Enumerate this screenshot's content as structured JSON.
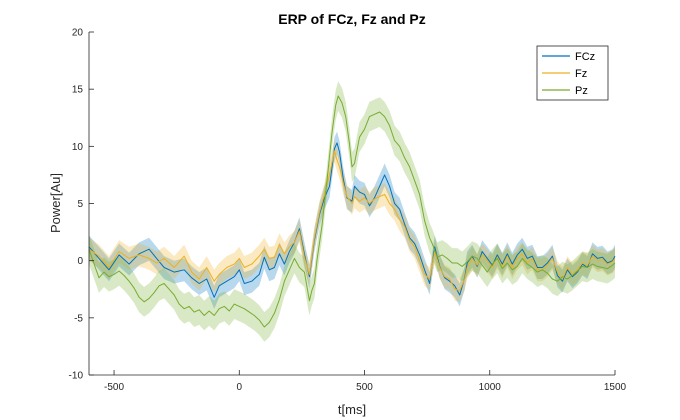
{
  "chart_data": {
    "type": "line",
    "title": "ERP of FCz, Fz and Pz",
    "xlabel": "t[ms]",
    "ylabel": "Power[Au]",
    "xlim": [
      -600,
      1500
    ],
    "ylim": [
      -10,
      20
    ],
    "xticks": [
      -500,
      0,
      500,
      1000,
      1500
    ],
    "yticks": [
      -10,
      -5,
      0,
      5,
      10,
      15,
      20
    ],
    "xtick_labels": [
      "-500",
      "0",
      "500",
      "1000",
      "1500"
    ],
    "ytick_labels": [
      "-10",
      "-5",
      "0",
      "5",
      "10",
      "15",
      "20"
    ],
    "grid": false,
    "legend_position": "top-right",
    "shaded_error_band": true,
    "series": [
      {
        "name": "FCz",
        "color": "#0072BD",
        "band": 1.0,
        "points": [
          [
            -600,
            1.2
          ],
          [
            -560,
            0.2
          ],
          [
            -520,
            -0.8
          ],
          [
            -480,
            0.5
          ],
          [
            -440,
            -0.3
          ],
          [
            -400,
            0.6
          ],
          [
            -360,
            1.0
          ],
          [
            -330,
            0.2
          ],
          [
            -300,
            -0.6
          ],
          [
            -260,
            -1.0
          ],
          [
            -220,
            -0.8
          ],
          [
            -190,
            -1.5
          ],
          [
            -160,
            -2.0
          ],
          [
            -130,
            -1.6
          ],
          [
            -100,
            -3.2
          ],
          [
            -80,
            -2.2
          ],
          [
            -50,
            -1.8
          ],
          [
            -20,
            -1.4
          ],
          [
            0,
            -0.8
          ],
          [
            20,
            -2.0
          ],
          [
            50,
            -1.8
          ],
          [
            80,
            -1.2
          ],
          [
            100,
            0.3
          ],
          [
            120,
            -0.8
          ],
          [
            140,
            -0.6
          ],
          [
            160,
            0.6
          ],
          [
            180,
            -0.3
          ],
          [
            200,
            0.8
          ],
          [
            220,
            1.6
          ],
          [
            240,
            2.8
          ],
          [
            260,
            0.6
          ],
          [
            280,
            -1.4
          ],
          [
            300,
            1.8
          ],
          [
            320,
            4.0
          ],
          [
            340,
            5.5
          ],
          [
            360,
            6.5
          ],
          [
            380,
            9.8
          ],
          [
            390,
            10.3
          ],
          [
            400,
            9.5
          ],
          [
            415,
            7.2
          ],
          [
            430,
            5.5
          ],
          [
            450,
            5.2
          ],
          [
            460,
            6.5
          ],
          [
            480,
            6.0
          ],
          [
            500,
            5.8
          ],
          [
            520,
            4.8
          ],
          [
            540,
            5.5
          ],
          [
            560,
            6.5
          ],
          [
            580,
            7.5
          ],
          [
            600,
            6.5
          ],
          [
            620,
            5.0
          ],
          [
            640,
            4.5
          ],
          [
            660,
            3.2
          ],
          [
            680,
            2.0
          ],
          [
            700,
            1.5
          ],
          [
            720,
            0.5
          ],
          [
            740,
            -0.8
          ],
          [
            760,
            -2.0
          ],
          [
            780,
            1.2
          ],
          [
            800,
            -0.5
          ],
          [
            820,
            -1.5
          ],
          [
            840,
            -1.8
          ],
          [
            860,
            -2.2
          ],
          [
            880,
            -3.0
          ],
          [
            900,
            -1.5
          ],
          [
            910,
            -0.2
          ],
          [
            930,
            0.4
          ],
          [
            950,
            -0.5
          ],
          [
            970,
            0.8
          ],
          [
            990,
            0.2
          ],
          [
            1010,
            -0.4
          ],
          [
            1030,
            0.5
          ],
          [
            1050,
            -0.3
          ],
          [
            1070,
            0.6
          ],
          [
            1090,
            -0.3
          ],
          [
            1110,
            0.5
          ],
          [
            1130,
            1.0
          ],
          [
            1150,
            0.2
          ],
          [
            1170,
            0.4
          ],
          [
            1190,
            -0.6
          ],
          [
            1210,
            -0.6
          ],
          [
            1230,
            -0.2
          ],
          [
            1250,
            0.4
          ],
          [
            1270,
            -1.3
          ],
          [
            1290,
            -1.8
          ],
          [
            1310,
            -0.8
          ],
          [
            1330,
            -1.4
          ],
          [
            1350,
            -1.0
          ],
          [
            1370,
            -0.3
          ],
          [
            1390,
            -0.6
          ],
          [
            1410,
            0.6
          ],
          [
            1430,
            0.2
          ],
          [
            1450,
            0.3
          ],
          [
            1470,
            -0.2
          ],
          [
            1490,
            0.0
          ],
          [
            1500,
            0.4
          ]
        ]
      },
      {
        "name": "Fz",
        "color": "#EDB120",
        "band": 1.0,
        "points": [
          [
            -600,
            1.0
          ],
          [
            -560,
            0.4
          ],
          [
            -520,
            -0.6
          ],
          [
            -480,
            0.8
          ],
          [
            -440,
            0.2
          ],
          [
            -400,
            0.5
          ],
          [
            -360,
            0.2
          ],
          [
            -330,
            -0.2
          ],
          [
            -300,
            0.2
          ],
          [
            -260,
            -0.6
          ],
          [
            -220,
            0.4
          ],
          [
            -190,
            -1.0
          ],
          [
            -160,
            -1.6
          ],
          [
            -130,
            -0.6
          ],
          [
            -100,
            -1.8
          ],
          [
            -80,
            -1.2
          ],
          [
            -50,
            -0.6
          ],
          [
            -20,
            -0.3
          ],
          [
            0,
            0.2
          ],
          [
            20,
            -0.6
          ],
          [
            50,
            -0.3
          ],
          [
            80,
            0.4
          ],
          [
            100,
            1.0
          ],
          [
            120,
            0.2
          ],
          [
            140,
            0.3
          ],
          [
            160,
            1.4
          ],
          [
            180,
            0.6
          ],
          [
            200,
            1.2
          ],
          [
            220,
            1.6
          ],
          [
            240,
            2.6
          ],
          [
            260,
            0.3
          ],
          [
            280,
            -1.2
          ],
          [
            300,
            2.0
          ],
          [
            320,
            4.2
          ],
          [
            340,
            5.8
          ],
          [
            360,
            7.5
          ],
          [
            380,
            9.6
          ],
          [
            390,
            8.8
          ],
          [
            400,
            8.2
          ],
          [
            415,
            6.8
          ],
          [
            430,
            5.6
          ],
          [
            450,
            5.0
          ],
          [
            460,
            5.6
          ],
          [
            480,
            5.2
          ],
          [
            500,
            5.5
          ],
          [
            520,
            5.0
          ],
          [
            540,
            5.4
          ],
          [
            560,
            5.6
          ],
          [
            580,
            5.8
          ],
          [
            600,
            5.0
          ],
          [
            620,
            4.5
          ],
          [
            640,
            3.6
          ],
          [
            660,
            3.0
          ],
          [
            680,
            1.8
          ],
          [
            700,
            1.2
          ],
          [
            720,
            0.0
          ],
          [
            740,
            -1.2
          ],
          [
            760,
            -1.6
          ],
          [
            780,
            0.8
          ],
          [
            800,
            -0.6
          ],
          [
            820,
            -1.4
          ],
          [
            840,
            -1.6
          ],
          [
            860,
            -2.5
          ],
          [
            880,
            -2.6
          ],
          [
            900,
            -1.6
          ],
          [
            910,
            -0.6
          ],
          [
            930,
            0.2
          ],
          [
            950,
            -0.4
          ],
          [
            970,
            0.5
          ],
          [
            990,
            0.0
          ],
          [
            1010,
            -0.6
          ],
          [
            1030,
            0.3
          ],
          [
            1050,
            -0.5
          ],
          [
            1070,
            0.4
          ],
          [
            1090,
            -0.6
          ],
          [
            1110,
            0.2
          ],
          [
            1130,
            0.6
          ],
          [
            1150,
            -0.2
          ],
          [
            1170,
            0.2
          ],
          [
            1190,
            -0.8
          ],
          [
            1210,
            -0.8
          ],
          [
            1230,
            -0.4
          ],
          [
            1250,
            0.2
          ],
          [
            1270,
            -1.0
          ],
          [
            1290,
            -1.6
          ],
          [
            1310,
            -0.6
          ],
          [
            1330,
            -1.2
          ],
          [
            1350,
            -0.8
          ],
          [
            1370,
            -0.2
          ],
          [
            1390,
            -0.4
          ],
          [
            1410,
            0.4
          ],
          [
            1430,
            0.0
          ],
          [
            1450,
            0.1
          ],
          [
            1470,
            -0.3
          ],
          [
            1490,
            -0.1
          ],
          [
            1500,
            0.2
          ]
        ]
      },
      {
        "name": "Pz",
        "color": "#77AC30",
        "band": 1.3,
        "points": [
          [
            -600,
            1.0
          ],
          [
            -575,
            -0.6
          ],
          [
            -560,
            -1.5
          ],
          [
            -540,
            -1.0
          ],
          [
            -520,
            -1.4
          ],
          [
            -500,
            -1.2
          ],
          [
            -480,
            -0.9
          ],
          [
            -460,
            -1.3
          ],
          [
            -440,
            -1.8
          ],
          [
            -420,
            -2.4
          ],
          [
            -400,
            -3.2
          ],
          [
            -380,
            -3.6
          ],
          [
            -360,
            -3.3
          ],
          [
            -340,
            -2.8
          ],
          [
            -320,
            -2.2
          ],
          [
            -300,
            -2.0
          ],
          [
            -280,
            -2.5
          ],
          [
            -260,
            -3.0
          ],
          [
            -240,
            -3.8
          ],
          [
            -220,
            -4.2
          ],
          [
            -200,
            -4.0
          ],
          [
            -180,
            -4.5
          ],
          [
            -160,
            -4.3
          ],
          [
            -140,
            -4.8
          ],
          [
            -120,
            -4.4
          ],
          [
            -100,
            -4.8
          ],
          [
            -80,
            -4.2
          ],
          [
            -60,
            -4.0
          ],
          [
            -40,
            -4.4
          ],
          [
            -20,
            -3.8
          ],
          [
            0,
            -4.0
          ],
          [
            20,
            -4.2
          ],
          [
            40,
            -4.5
          ],
          [
            60,
            -4.8
          ],
          [
            80,
            -5.2
          ],
          [
            100,
            -5.8
          ],
          [
            120,
            -5.4
          ],
          [
            140,
            -4.6
          ],
          [
            160,
            -3.4
          ],
          [
            180,
            -1.8
          ],
          [
            200,
            -0.8
          ],
          [
            220,
            0.2
          ],
          [
            240,
            -0.6
          ],
          [
            260,
            -1.0
          ],
          [
            280,
            -3.5
          ],
          [
            290,
            -2.6
          ],
          [
            300,
            -2.0
          ],
          [
            310,
            0.0
          ],
          [
            330,
            3.0
          ],
          [
            350,
            7.0
          ],
          [
            370,
            11.2
          ],
          [
            385,
            13.6
          ],
          [
            395,
            14.4
          ],
          [
            410,
            13.8
          ],
          [
            425,
            12.6
          ],
          [
            440,
            10.2
          ],
          [
            450,
            8.2
          ],
          [
            460,
            8.5
          ],
          [
            480,
            10.8
          ],
          [
            500,
            11.5
          ],
          [
            520,
            12.6
          ],
          [
            540,
            12.8
          ],
          [
            560,
            13.0
          ],
          [
            580,
            12.6
          ],
          [
            600,
            11.8
          ],
          [
            620,
            10.5
          ],
          [
            640,
            10.0
          ],
          [
            660,
            9.0
          ],
          [
            680,
            8.2
          ],
          [
            700,
            7.0
          ],
          [
            720,
            5.8
          ],
          [
            740,
            3.5
          ],
          [
            760,
            2.0
          ],
          [
            770,
            1.5
          ],
          [
            790,
            0.3
          ],
          [
            810,
            0.5
          ],
          [
            830,
            0.2
          ],
          [
            850,
            -0.2
          ],
          [
            870,
            -0.2
          ],
          [
            890,
            -0.5
          ],
          [
            910,
            -0.1
          ],
          [
            930,
            0.4
          ],
          [
            950,
            0.2
          ],
          [
            970,
            -0.4
          ],
          [
            990,
            -1.0
          ],
          [
            1010,
            -0.3
          ],
          [
            1030,
            0.2
          ],
          [
            1050,
            -0.7
          ],
          [
            1070,
            -0.2
          ],
          [
            1090,
            -0.8
          ],
          [
            1110,
            -0.5
          ],
          [
            1130,
            0.2
          ],
          [
            1150,
            -0.3
          ],
          [
            1170,
            -0.6
          ],
          [
            1190,
            -1.0
          ],
          [
            1210,
            -0.8
          ],
          [
            1230,
            -1.1
          ],
          [
            1250,
            -1.6
          ],
          [
            1270,
            -1.8
          ],
          [
            1290,
            -1.4
          ],
          [
            1310,
            -1.6
          ],
          [
            1330,
            -1.3
          ],
          [
            1350,
            -0.9
          ],
          [
            1370,
            -0.5
          ],
          [
            1390,
            -0.6
          ],
          [
            1410,
            -0.3
          ],
          [
            1430,
            -0.5
          ],
          [
            1450,
            -0.6
          ],
          [
            1470,
            -0.7
          ],
          [
            1490,
            -0.4
          ],
          [
            1500,
            -0.2
          ]
        ]
      }
    ]
  }
}
